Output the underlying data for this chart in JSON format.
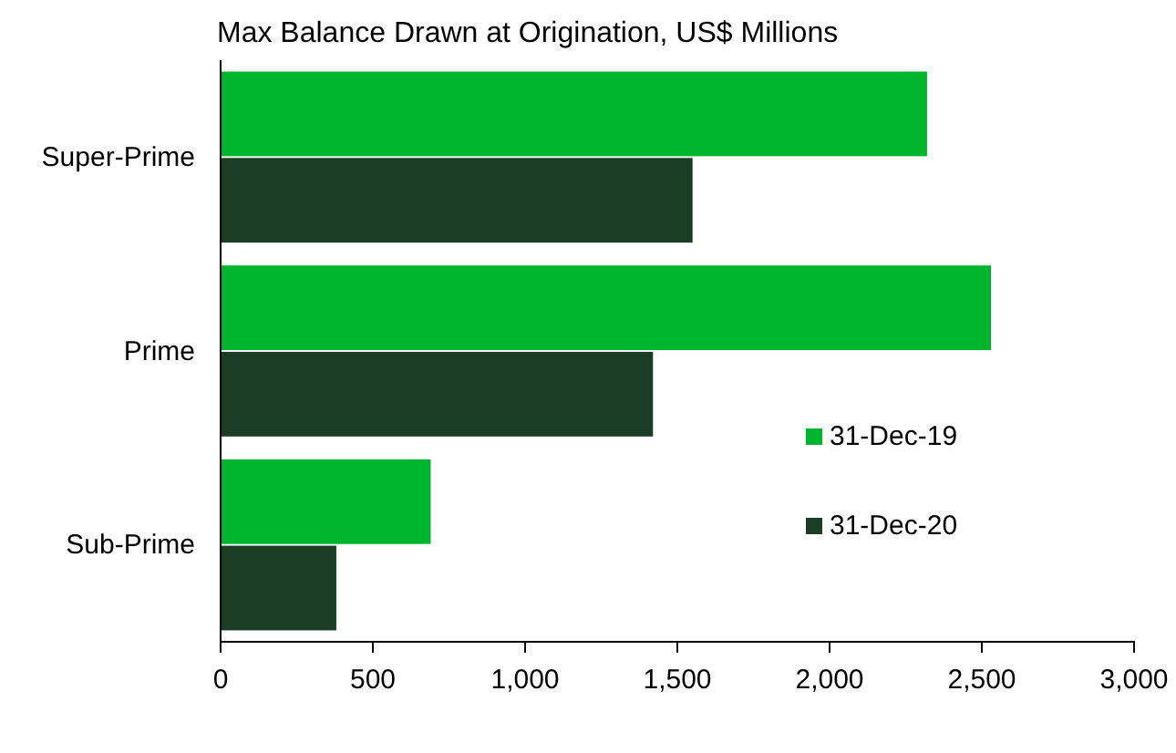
{
  "chart_data": {
    "type": "bar",
    "orientation": "horizontal",
    "title": "Max Balance Drawn at Origination, US$ Millions",
    "categories": [
      "Super-Prime",
      "Prime",
      "Sub-Prime"
    ],
    "series": [
      {
        "name": "31-Dec-19",
        "color": "#00b52e",
        "values": [
          2320,
          2530,
          690
        ]
      },
      {
        "name": "31-Dec-20",
        "color": "#1b3d25",
        "values": [
          1550,
          1420,
          380
        ]
      }
    ],
    "xlim": [
      0,
      3000
    ],
    "xticks": [
      {
        "value": 0,
        "label": "0"
      },
      {
        "value": 500,
        "label": "500"
      },
      {
        "value": 1000,
        "label": "1,000"
      },
      {
        "value": 1500,
        "label": "1,500"
      },
      {
        "value": 2000,
        "label": "2,000"
      },
      {
        "value": 2500,
        "label": "2,500"
      },
      {
        "value": 3000,
        "label": "3,000"
      }
    ],
    "legend": "bottom right",
    "grid": false
  }
}
